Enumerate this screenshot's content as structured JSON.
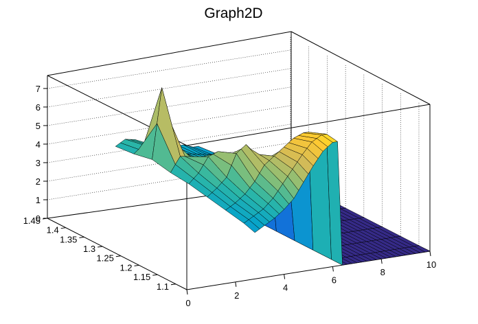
{
  "chart_data": {
    "type": "surface",
    "title": "Graph2D",
    "x_ticks": [
      "0",
      "2",
      "4",
      "6",
      "8",
      "10"
    ],
    "y_ticks": [
      "1.1",
      "1.15",
      "1.2",
      "1.25",
      "1.3",
      "1.35",
      "1.4",
      "1.45"
    ],
    "z_ticks": [
      "0",
      "1",
      "2",
      "3",
      "4",
      "5",
      "6",
      "7"
    ],
    "xlim": [
      0,
      10
    ],
    "ylim": [
      1.07,
      1.45
    ],
    "zlim": [
      0,
      7.7
    ],
    "grid": true,
    "colormap": [
      "#352a87",
      "#0f5cdd",
      "#1481d6",
      "#06a4ca",
      "#2eb7a4",
      "#87bf77",
      "#d1bb59",
      "#fec832",
      "#f9fb0e"
    ],
    "surface_description_fields": {
      "x_extent": [
        2.8,
        10
      ],
      "y_extent": [
        1.07,
        1.45
      ]
    },
    "series": [
      {
        "y": 1.45,
        "points": [
          [
            2.8,
            3.3
          ],
          [
            3.2,
            3.6
          ],
          [
            3.6,
            3.5
          ],
          [
            4.0,
            3.2
          ],
          [
            4.4,
            3.0
          ],
          [
            4.8,
            2.9
          ],
          [
            5.2,
            2.8
          ],
          [
            5.6,
            2.8
          ],
          [
            6.0,
            2.6
          ],
          [
            6.4,
            0
          ],
          [
            10,
            0
          ]
        ]
      },
      {
        "y": 1.4,
        "points": [
          [
            2.8,
            3.4
          ],
          [
            3.2,
            3.8
          ],
          [
            3.6,
            3.7
          ],
          [
            4.0,
            3.3
          ],
          [
            4.4,
            3.1
          ],
          [
            4.8,
            3.0
          ],
          [
            5.2,
            2.9
          ],
          [
            5.6,
            2.8
          ],
          [
            6.0,
            2.7
          ],
          [
            6.4,
            0
          ],
          [
            10,
            0
          ]
        ]
      },
      {
        "y": 1.35,
        "points": [
          [
            2.8,
            3.6
          ],
          [
            3.2,
            7.4
          ],
          [
            3.6,
            4.5
          ],
          [
            4.0,
            3.6
          ],
          [
            4.4,
            3.3
          ],
          [
            4.8,
            3.1
          ],
          [
            5.2,
            3.0
          ],
          [
            5.6,
            2.9
          ],
          [
            6.0,
            2.8
          ],
          [
            6.4,
            0
          ],
          [
            10,
            0
          ]
        ]
      },
      {
        "y": 1.3,
        "points": [
          [
            2.8,
            3.4
          ],
          [
            3.2,
            4.2
          ],
          [
            3.6,
            4.1
          ],
          [
            4.0,
            3.8
          ],
          [
            4.4,
            3.4
          ],
          [
            4.8,
            3.2
          ],
          [
            5.2,
            3.1
          ],
          [
            5.6,
            3.0
          ],
          [
            6.0,
            2.9
          ],
          [
            6.4,
            0
          ],
          [
            10,
            0
          ]
        ]
      },
      {
        "y": 1.25,
        "points": [
          [
            2.8,
            3.3
          ],
          [
            3.2,
            3.8
          ],
          [
            3.6,
            4.6
          ],
          [
            4.0,
            4.8
          ],
          [
            4.4,
            4.0
          ],
          [
            4.8,
            3.5
          ],
          [
            5.2,
            3.2
          ],
          [
            5.6,
            3.0
          ],
          [
            6.0,
            2.9
          ],
          [
            6.4,
            0
          ],
          [
            10,
            0
          ]
        ]
      },
      {
        "y": 1.2,
        "points": [
          [
            2.8,
            3.1
          ],
          [
            3.2,
            3.5
          ],
          [
            3.6,
            4.0
          ],
          [
            4.0,
            5.2
          ],
          [
            4.4,
            5.6
          ],
          [
            4.8,
            5.0
          ],
          [
            5.2,
            4.0
          ],
          [
            5.6,
            3.3
          ],
          [
            6.0,
            3.0
          ],
          [
            6.4,
            0
          ],
          [
            10,
            0
          ]
        ]
      },
      {
        "y": 1.15,
        "points": [
          [
            2.8,
            2.9
          ],
          [
            3.2,
            3.2
          ],
          [
            3.6,
            3.6
          ],
          [
            4.0,
            4.2
          ],
          [
            4.4,
            5.0
          ],
          [
            4.8,
            5.4
          ],
          [
            5.2,
            5.8
          ],
          [
            5.6,
            6.2
          ],
          [
            6.0,
            6.4
          ],
          [
            6.4,
            0
          ],
          [
            10,
            0
          ]
        ]
      },
      {
        "y": 1.1,
        "points": [
          [
            2.8,
            2.7
          ],
          [
            3.2,
            3.0
          ],
          [
            3.6,
            3.3
          ],
          [
            4.0,
            3.8
          ],
          [
            4.4,
            4.5
          ],
          [
            4.8,
            5.2
          ],
          [
            5.2,
            5.9
          ],
          [
            5.6,
            6.5
          ],
          [
            6.0,
            6.8
          ],
          [
            6.4,
            0
          ],
          [
            10,
            0
          ]
        ]
      },
      {
        "y": 1.07,
        "points": [
          [
            2.8,
            2.5
          ],
          [
            3.2,
            2.8
          ],
          [
            3.6,
            3.1
          ],
          [
            4.0,
            3.5
          ],
          [
            4.4,
            4.0
          ],
          [
            4.8,
            4.8
          ],
          [
            5.2,
            5.6
          ],
          [
            5.6,
            6.3
          ],
          [
            6.0,
            6.7
          ],
          [
            6.4,
            0
          ],
          [
            10,
            0
          ]
        ]
      }
    ]
  }
}
